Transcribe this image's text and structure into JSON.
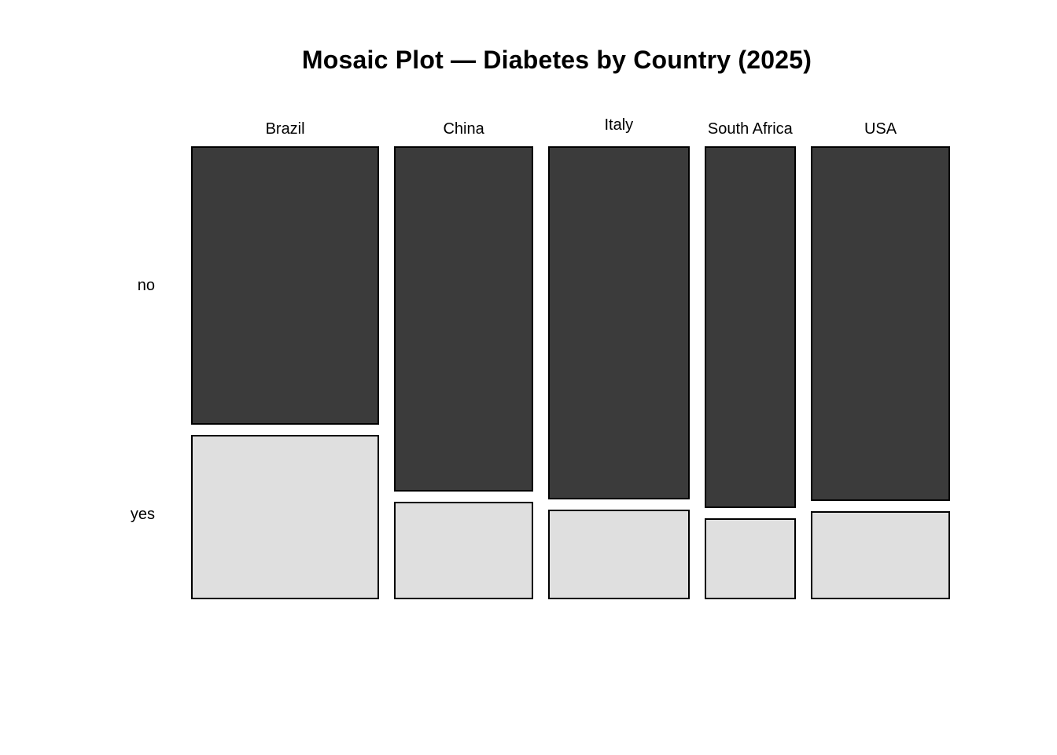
{
  "title": "Mosaic Plot — Diabetes by Country (2025)",
  "chart_data": {
    "type": "mosaic",
    "title": "Mosaic Plot — Diabetes by Country (2025)",
    "categories": [
      "Brazil",
      "China",
      "Italy",
      "South Africa",
      "USA"
    ],
    "row_categories": [
      "no",
      "yes"
    ],
    "column_share": [
      0.269,
      0.199,
      0.202,
      0.131,
      0.199
    ],
    "series": [
      {
        "name": "no",
        "values": [
          0.629,
          0.779,
          0.798,
          0.817,
          0.801
        ]
      },
      {
        "name": "yes",
        "values": [
          0.371,
          0.221,
          0.202,
          0.183,
          0.199
        ]
      }
    ],
    "colors": {
      "no": "#3B3B3B",
      "yes": "#DFDFDF",
      "cell_border": "#000000",
      "background": "#FFFFFF",
      "text": "#000000"
    },
    "legend": "none",
    "grid": false
  }
}
